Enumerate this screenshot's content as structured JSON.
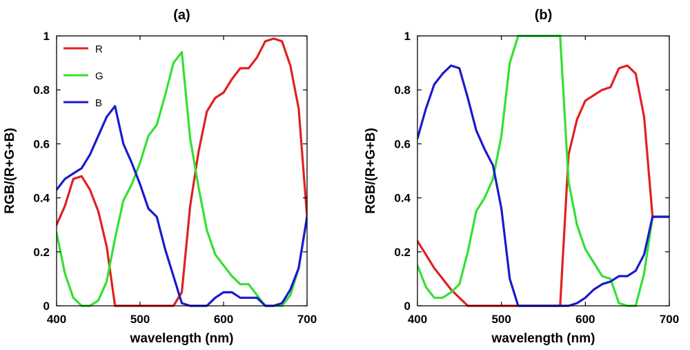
{
  "chart_data": [
    {
      "type": "line",
      "title": "(a)",
      "xlabel": "wavelength (nm)",
      "ylabel": "RGB/(R+G+B)",
      "xlim": [
        400,
        700
      ],
      "ylim": [
        0,
        1
      ],
      "xticks": [
        "400",
        "500",
        "600",
        "700"
      ],
      "yticks": [
        "0",
        "0.2",
        "0.4",
        "0.6",
        "0.8",
        "1"
      ],
      "legend": "top-left",
      "grid": false,
      "series": [
        {
          "name": "R",
          "color": "#e02020",
          "x": [
            400,
            410,
            420,
            430,
            440,
            450,
            460,
            470,
            480,
            490,
            500,
            510,
            520,
            530,
            540,
            550,
            560,
            570,
            580,
            590,
            600,
            610,
            620,
            630,
            640,
            650,
            660,
            670,
            680,
            690,
            700
          ],
          "y": [
            0.3,
            0.37,
            0.47,
            0.48,
            0.43,
            0.35,
            0.22,
            0,
            0,
            0,
            0,
            0,
            0,
            0,
            0,
            0.05,
            0.37,
            0.57,
            0.72,
            0.77,
            0.79,
            0.84,
            0.88,
            0.88,
            0.92,
            0.98,
            0.99,
            0.98,
            0.89,
            0.73,
            0.33
          ]
        },
        {
          "name": "G",
          "color": "#33e033",
          "x": [
            400,
            410,
            420,
            430,
            440,
            450,
            460,
            470,
            480,
            490,
            500,
            510,
            520,
            530,
            540,
            550,
            560,
            570,
            580,
            590,
            600,
            610,
            620,
            630,
            640,
            650,
            660,
            670,
            680,
            690,
            700
          ],
          "y": [
            0.27,
            0.12,
            0.03,
            0,
            0,
            0.02,
            0.09,
            0.25,
            0.39,
            0.45,
            0.53,
            0.63,
            0.67,
            0.78,
            0.9,
            0.94,
            0.62,
            0.44,
            0.28,
            0.19,
            0.15,
            0.11,
            0.08,
            0.08,
            0.04,
            0,
            0,
            0,
            0.04,
            0.14,
            0.33
          ]
        },
        {
          "name": "B",
          "color": "#1a1acc",
          "x": [
            400,
            410,
            420,
            430,
            440,
            450,
            460,
            470,
            480,
            490,
            500,
            510,
            520,
            530,
            540,
            550,
            560,
            570,
            580,
            590,
            600,
            610,
            620,
            630,
            640,
            650,
            660,
            670,
            680,
            690,
            700
          ],
          "y": [
            0.43,
            0.47,
            0.49,
            0.51,
            0.56,
            0.63,
            0.7,
            0.74,
            0.6,
            0.53,
            0.45,
            0.36,
            0.33,
            0.21,
            0.11,
            0.01,
            0,
            0,
            0,
            0.03,
            0.05,
            0.05,
            0.03,
            0.03,
            0.03,
            0,
            0,
            0.01,
            0.06,
            0.14,
            0.33
          ]
        }
      ]
    },
    {
      "type": "line",
      "title": "(b)",
      "xlabel": "wavelength (nm)",
      "ylabel": "RGB/(R+G+B)",
      "xlim": [
        400,
        700
      ],
      "ylim": [
        0,
        1
      ],
      "xticks": [
        "400",
        "500",
        "600",
        "700"
      ],
      "yticks": [
        "0",
        "0.2",
        "0.4",
        "0.6",
        "0.8",
        "1"
      ],
      "grid": false,
      "series": [
        {
          "color": "#e02020",
          "x": [
            400,
            410,
            420,
            430,
            440,
            450,
            460,
            470,
            480,
            490,
            500,
            510,
            520,
            530,
            540,
            550,
            560,
            570,
            580,
            590,
            600,
            610,
            620,
            630,
            640,
            650,
            660,
            670,
            680,
            690,
            700
          ],
          "y": [
            0.24,
            0.19,
            0.14,
            0.1,
            0.06,
            0.03,
            0,
            0,
            0,
            0,
            0,
            0,
            0,
            0,
            0,
            0,
            0,
            0,
            0.56,
            0.69,
            0.76,
            0.78,
            0.8,
            0.81,
            0.88,
            0.89,
            0.86,
            0.7,
            0.33,
            0.33,
            0.33
          ]
        },
        {
          "color": "#33e033",
          "x": [
            400,
            410,
            420,
            430,
            440,
            450,
            460,
            470,
            480,
            490,
            500,
            510,
            520,
            530,
            540,
            550,
            560,
            570,
            580,
            590,
            600,
            610,
            620,
            630,
            640,
            650,
            660,
            670,
            680,
            690,
            700
          ],
          "y": [
            0.15,
            0.07,
            0.03,
            0.03,
            0.05,
            0.08,
            0.2,
            0.35,
            0.4,
            0.47,
            0.63,
            0.9,
            1,
            1,
            1,
            1,
            1,
            1,
            0.46,
            0.3,
            0.21,
            0.16,
            0.11,
            0.1,
            0.01,
            0,
            0,
            0.12,
            0.33,
            0.33,
            0.33
          ]
        },
        {
          "color": "#1a1acc",
          "x": [
            400,
            410,
            420,
            430,
            440,
            450,
            460,
            470,
            480,
            490,
            500,
            510,
            520,
            530,
            540,
            550,
            560,
            570,
            580,
            590,
            600,
            610,
            620,
            630,
            640,
            650,
            660,
            670,
            680,
            690,
            700
          ],
          "y": [
            0.62,
            0.73,
            0.82,
            0.86,
            0.89,
            0.88,
            0.77,
            0.65,
            0.58,
            0.52,
            0.36,
            0.1,
            0,
            0,
            0,
            0,
            0,
            0,
            0,
            0.01,
            0.03,
            0.06,
            0.08,
            0.09,
            0.11,
            0.11,
            0.13,
            0.19,
            0.33,
            0.33,
            0.33
          ]
        }
      ]
    }
  ]
}
